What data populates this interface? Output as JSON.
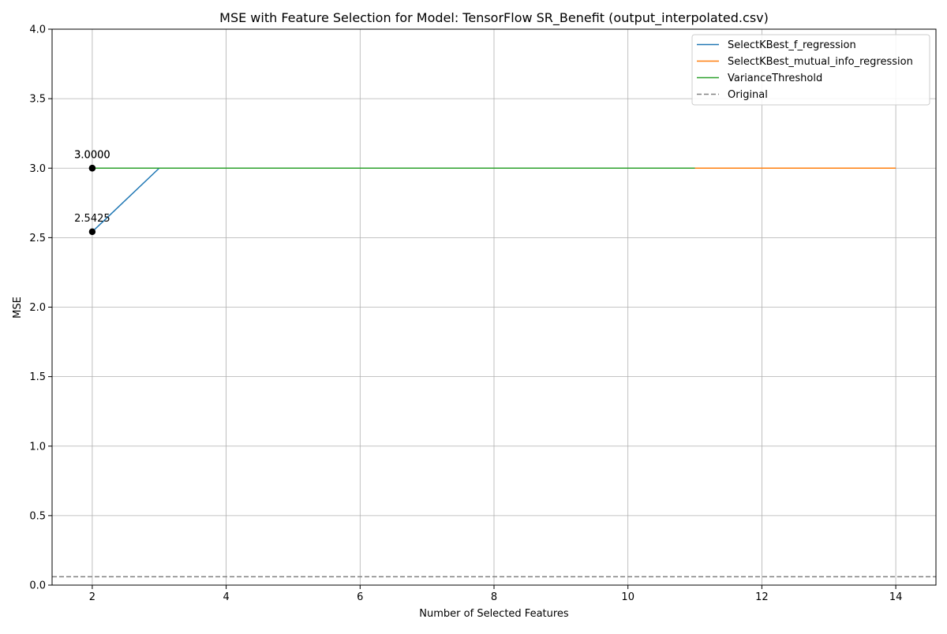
{
  "chart_data": {
    "type": "line",
    "title": "MSE with Feature Selection for Model: TensorFlow SR_Benefit (output_interpolated.csv)",
    "xlabel": "Number of Selected Features",
    "ylabel": "MSE",
    "xlim": [
      1.4,
      14.6
    ],
    "ylim": [
      0,
      4
    ],
    "xticks": [
      2,
      4,
      6,
      8,
      10,
      12,
      14
    ],
    "yticks": [
      0.0,
      0.5,
      1.0,
      1.5,
      2.0,
      2.5,
      3.0,
      3.5,
      4.0
    ],
    "xtick_labels": [
      "2",
      "4",
      "6",
      "8",
      "10",
      "12",
      "14"
    ],
    "ytick_labels": [
      "0.0",
      "0.5",
      "1.0",
      "1.5",
      "2.0",
      "2.5",
      "3.0",
      "3.5",
      "4.0"
    ],
    "grid": true,
    "legend_position": "top-right",
    "series": [
      {
        "name": "SelectKBest_f_regression",
        "color": "#1f77b4",
        "style": "solid",
        "x": [
          2,
          3,
          4,
          5,
          6,
          7,
          8,
          9,
          10,
          11,
          12,
          13,
          14
        ],
        "y": [
          2.5425,
          3.0,
          3.0,
          3.0,
          3.0,
          3.0,
          3.0,
          3.0,
          3.0,
          3.0,
          3.0,
          3.0,
          3.0
        ]
      },
      {
        "name": "SelectKBest_mutual_info_regression",
        "color": "#ff7f0e",
        "style": "solid",
        "x": [
          2,
          3,
          4,
          5,
          6,
          7,
          8,
          9,
          10,
          11,
          12,
          13,
          14
        ],
        "y": [
          3.0,
          3.0,
          3.0,
          3.0,
          3.0,
          3.0,
          3.0,
          3.0,
          3.0,
          3.0,
          3.0,
          3.0,
          3.0
        ]
      },
      {
        "name": "VarianceThreshold",
        "color": "#2ca02c",
        "style": "solid",
        "x": [
          2,
          3,
          4,
          5,
          6,
          7,
          8,
          9,
          10,
          11
        ],
        "y": [
          3.0,
          3.0,
          3.0,
          3.0,
          3.0,
          3.0,
          3.0,
          3.0,
          3.0,
          3.0
        ]
      }
    ],
    "reference_lines": [
      {
        "name": "Original",
        "color": "#808080",
        "style": "dashed",
        "y": 0.06
      }
    ],
    "annotations": [
      {
        "x": 2,
        "y": 3.0,
        "label": "3.0000",
        "color": "#000000"
      },
      {
        "x": 2,
        "y": 3.0,
        "label": "3.0000",
        "color": "#000000"
      },
      {
        "x": 2,
        "y": 2.5425,
        "label": "2.5425",
        "color": "#000000"
      }
    ]
  }
}
